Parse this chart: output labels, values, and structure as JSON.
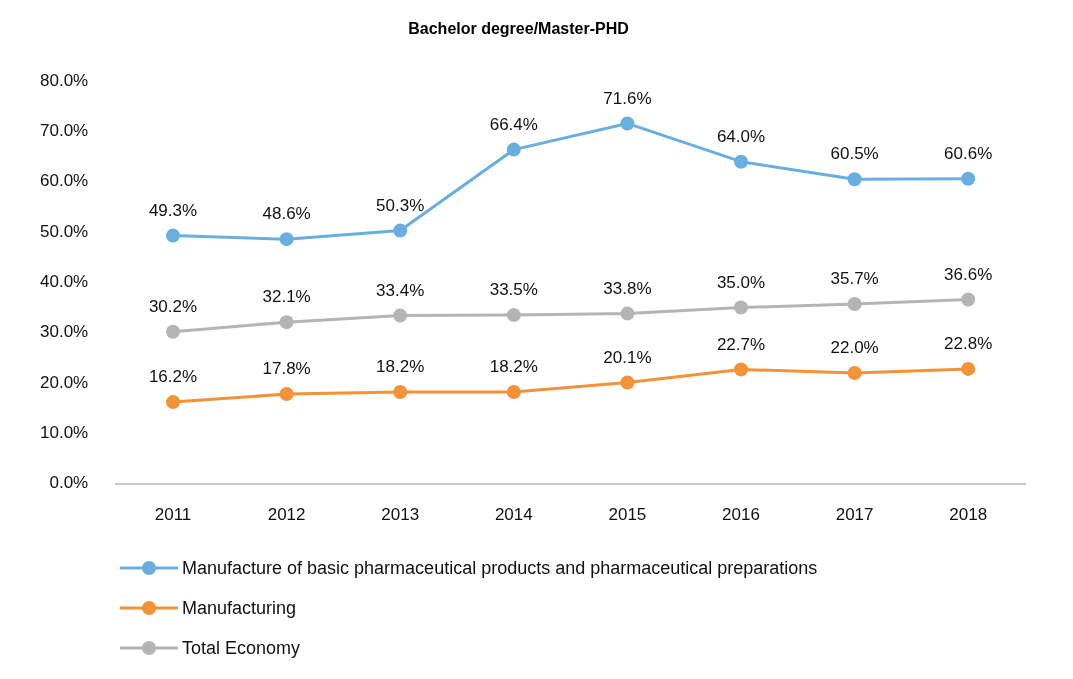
{
  "chart_data": {
    "type": "line",
    "title": "Bachelor degree/Master-PHD",
    "categories": [
      "2011",
      "2012",
      "2013",
      "2014",
      "2015",
      "2016",
      "2017",
      "2018"
    ],
    "series": [
      {
        "name": "Manufacture of basic pharmaceutical products and pharmaceutical preparations",
        "color": "#6aaee0",
        "values": [
          49.3,
          48.6,
          50.3,
          66.4,
          71.6,
          64.0,
          60.5,
          60.6
        ],
        "value_labels": [
          "49.3%",
          "48.6%",
          "50.3%",
          "66.4%",
          "71.6%",
          "64.0%",
          "60.5%",
          "60.6%"
        ]
      },
      {
        "name": "Manufacturing",
        "color": "#f39237",
        "values": [
          16.2,
          17.8,
          18.2,
          18.2,
          20.1,
          22.7,
          22.0,
          22.8
        ],
        "value_labels": [
          "16.2%",
          "17.8%",
          "18.2%",
          "18.2%",
          "20.1%",
          "22.7%",
          "22.0%",
          "22.8%"
        ]
      },
      {
        "name": "Total Economy",
        "color": "#b4b4b4",
        "values": [
          30.2,
          32.1,
          33.4,
          33.5,
          33.8,
          35.0,
          35.7,
          36.6
        ],
        "value_labels": [
          "30.2%",
          "32.1%",
          "33.4%",
          "33.5%",
          "33.8%",
          "35.0%",
          "35.7%",
          "36.6%"
        ]
      }
    ],
    "ylim": [
      0,
      80
    ],
    "yticks": [
      {
        "value": 0,
        "label": "0.0%"
      },
      {
        "value": 10,
        "label": "10.0%"
      },
      {
        "value": 20,
        "label": "20.0%"
      },
      {
        "value": 30,
        "label": "30.0%"
      },
      {
        "value": 40,
        "label": "40.0%"
      },
      {
        "value": 50,
        "label": "50.0%"
      },
      {
        "value": 60,
        "label": "60.0%"
      },
      {
        "value": 70,
        "label": "70.0%"
      },
      {
        "value": 80,
        "label": "80.0%"
      }
    ],
    "grid": false,
    "legend": "bottom",
    "marker": "circle",
    "line_style": "solid"
  }
}
